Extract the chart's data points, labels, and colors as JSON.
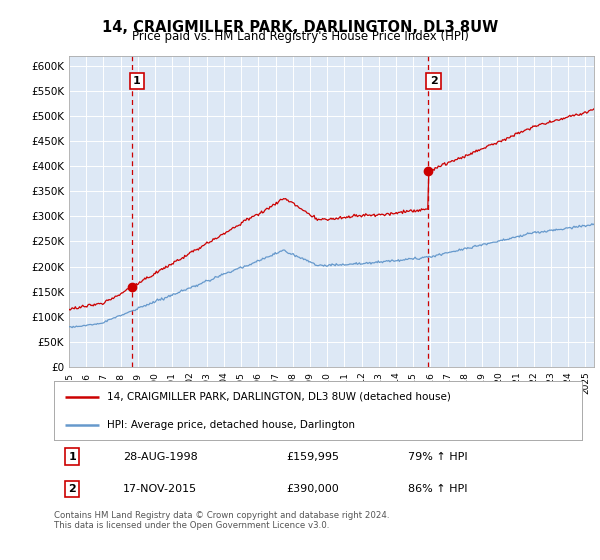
{
  "title": "14, CRAIGMILLER PARK, DARLINGTON, DL3 8UW",
  "subtitle": "Price paid vs. HM Land Registry's House Price Index (HPI)",
  "ylim": [
    0,
    620000
  ],
  "yticks": [
    0,
    50000,
    100000,
    150000,
    200000,
    250000,
    300000,
    350000,
    400000,
    450000,
    500000,
    550000,
    600000
  ],
  "ytick_labels": [
    "£0",
    "£50K",
    "£100K",
    "£150K",
    "£200K",
    "£250K",
    "£300K",
    "£350K",
    "£400K",
    "£450K",
    "£500K",
    "£550K",
    "£600K"
  ],
  "sale1_price": 159995,
  "sale1_year": 1998.65,
  "sale2_price": 390000,
  "sale2_year": 2015.88,
  "hpi_color": "#6699cc",
  "price_color": "#cc0000",
  "dashed_color": "#cc0000",
  "legend_label_price": "14, CRAIGMILLER PARK, DARLINGTON, DL3 8UW (detached house)",
  "legend_label_hpi": "HPI: Average price, detached house, Darlington",
  "footer": "Contains HM Land Registry data © Crown copyright and database right 2024.\nThis data is licensed under the Open Government Licence v3.0.",
  "xmin": 1995.0,
  "xmax": 2025.5,
  "plot_bg_color": "#dde8f5",
  "fig_bg_color": "#ffffff",
  "grid_color": "#ffffff"
}
